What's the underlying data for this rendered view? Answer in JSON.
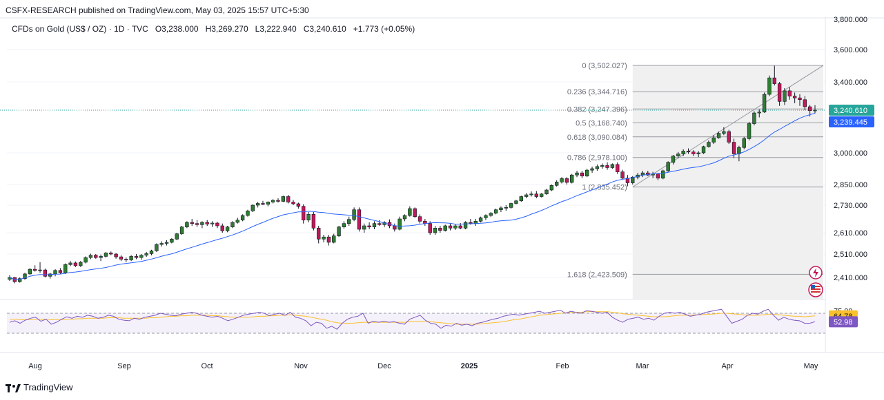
{
  "header": {
    "text": "CSFX-RESEARCH published on TradingView.com, May 03, 2025 15:57 UTC+5:30"
  },
  "legend": {
    "symbol": "CFDs on Gold (US$ / OZ) · 1D · TVC",
    "open": "O3,238.000",
    "high": "H3,269.270",
    "low": "L3,222.940",
    "close": "C3,240.610",
    "change": "+1.773 (+0.05%)"
  },
  "footer": {
    "brand": "TradingView"
  },
  "colors": {
    "up": "#26a69a",
    "up_body": "#2e7d32",
    "down": "#c2185b",
    "ma": "#2962ff",
    "rsi": "#7e57c2",
    "rsi_ma": "#fbc02d",
    "fib_bg": "#f0f0f0"
  },
  "chart_data": [
    {
      "type": "candlestick",
      "price_axis_ticks": [
        "3,600.000",
        "3,400.000",
        "3,000.000",
        "2,850.000",
        "2,730.000",
        "2,610.000",
        "2,510.000",
        "2,410.000"
      ],
      "price_axis_top_partial": "3,800.000",
      "time_axis_ticks": [
        "Aug",
        "Sep",
        "Oct",
        "Nov",
        "Dec",
        "2025",
        "Feb",
        "Mar",
        "Apr",
        "May"
      ],
      "last_price_tag": "3,240.610",
      "ma_tag": "3,239.445",
      "ohlc_series": [
        [
          2402,
          2420,
          2395,
          2410
        ],
        [
          2410,
          2412,
          2385,
          2392
        ],
        [
          2392,
          2410,
          2388,
          2405
        ],
        [
          2405,
          2430,
          2400,
          2425
        ],
        [
          2425,
          2450,
          2420,
          2445
        ],
        [
          2445,
          2462,
          2435,
          2440
        ],
        [
          2440,
          2475,
          2430,
          2442
        ],
        [
          2442,
          2448,
          2410,
          2415
        ],
        [
          2415,
          2430,
          2405,
          2425
        ],
        [
          2425,
          2445,
          2415,
          2440
        ],
        [
          2440,
          2450,
          2425,
          2430
        ],
        [
          2430,
          2470,
          2425,
          2465
        ],
        [
          2465,
          2480,
          2458,
          2472
        ],
        [
          2472,
          2478,
          2455,
          2460
        ],
        [
          2460,
          2480,
          2455,
          2475
        ],
        [
          2475,
          2500,
          2470,
          2495
        ],
        [
          2495,
          2512,
          2488,
          2505
        ],
        [
          2505,
          2510,
          2490,
          2495
        ],
        [
          2495,
          2508,
          2480,
          2500
        ],
        [
          2500,
          2520,
          2495,
          2515
        ],
        [
          2515,
          2522,
          2505,
          2510
        ],
        [
          2510,
          2515,
          2490,
          2498
        ],
        [
          2498,
          2505,
          2480,
          2488
        ],
        [
          2488,
          2495,
          2475,
          2485
        ],
        [
          2485,
          2505,
          2480,
          2500
        ],
        [
          2500,
          2510,
          2488,
          2495
        ],
        [
          2495,
          2510,
          2485,
          2505
        ],
        [
          2505,
          2520,
          2498,
          2512
        ],
        [
          2512,
          2530,
          2505,
          2525
        ],
        [
          2525,
          2560,
          2520,
          2555
        ],
        [
          2555,
          2570,
          2545,
          2560
        ],
        [
          2560,
          2575,
          2550,
          2565
        ],
        [
          2565,
          2585,
          2560,
          2580
        ],
        [
          2580,
          2610,
          2575,
          2605
        ],
        [
          2605,
          2640,
          2600,
          2635
        ],
        [
          2635,
          2660,
          2630,
          2655
        ],
        [
          2655,
          2670,
          2640,
          2650
        ],
        [
          2650,
          2665,
          2635,
          2645
        ],
        [
          2645,
          2660,
          2630,
          2655
        ],
        [
          2655,
          2665,
          2640,
          2648
        ],
        [
          2648,
          2660,
          2635,
          2652
        ],
        [
          2652,
          2658,
          2630,
          2640
        ],
        [
          2640,
          2650,
          2610,
          2618
        ],
        [
          2618,
          2640,
          2612,
          2635
        ],
        [
          2635,
          2660,
          2630,
          2655
        ],
        [
          2655,
          2675,
          2650,
          2665
        ],
        [
          2665,
          2690,
          2660,
          2685
        ],
        [
          2685,
          2710,
          2680,
          2705
        ],
        [
          2705,
          2735,
          2700,
          2730
        ],
        [
          2730,
          2750,
          2720,
          2740
        ],
        [
          2740,
          2755,
          2730,
          2735
        ],
        [
          2735,
          2752,
          2725,
          2748
        ],
        [
          2748,
          2765,
          2740,
          2758
        ],
        [
          2758,
          2770,
          2745,
          2752
        ],
        [
          2752,
          2785,
          2748,
          2780
        ],
        [
          2780,
          2790,
          2740,
          2748
        ],
        [
          2748,
          2760,
          2730,
          2738
        ],
        [
          2738,
          2745,
          2715,
          2725
        ],
        [
          2725,
          2735,
          2650,
          2665
        ],
        [
          2665,
          2700,
          2655,
          2690
        ],
        [
          2690,
          2700,
          2620,
          2630
        ],
        [
          2630,
          2640,
          2560,
          2580
        ],
        [
          2580,
          2600,
          2565,
          2590
        ],
        [
          2590,
          2600,
          2550,
          2565
        ],
        [
          2565,
          2605,
          2560,
          2595
        ],
        [
          2595,
          2640,
          2590,
          2635
        ],
        [
          2635,
          2660,
          2628,
          2650
        ],
        [
          2650,
          2680,
          2640,
          2668
        ],
        [
          2668,
          2720,
          2660,
          2710
        ],
        [
          2710,
          2720,
          2615,
          2625
        ],
        [
          2625,
          2650,
          2610,
          2640
        ],
        [
          2640,
          2655,
          2625,
          2635
        ],
        [
          2635,
          2660,
          2625,
          2650
        ],
        [
          2650,
          2665,
          2640,
          2645
        ],
        [
          2645,
          2660,
          2635,
          2655
        ],
        [
          2655,
          2668,
          2630,
          2640
        ],
        [
          2640,
          2650,
          2615,
          2625
        ],
        [
          2625,
          2680,
          2620,
          2670
        ],
        [
          2670,
          2690,
          2660,
          2685
        ],
        [
          2685,
          2725,
          2680,
          2715
        ],
        [
          2715,
          2720,
          2675,
          2680
        ],
        [
          2680,
          2690,
          2650,
          2660
        ],
        [
          2660,
          2670,
          2640,
          2650
        ],
        [
          2650,
          2660,
          2600,
          2610
        ],
        [
          2610,
          2640,
          2600,
          2630
        ],
        [
          2630,
          2640,
          2610,
          2620
        ],
        [
          2620,
          2645,
          2615,
          2640
        ],
        [
          2640,
          2650,
          2620,
          2630
        ],
        [
          2630,
          2648,
          2622,
          2640
        ],
        [
          2640,
          2652,
          2625,
          2630
        ],
        [
          2630,
          2660,
          2625,
          2655
        ],
        [
          2655,
          2670,
          2645,
          2650
        ],
        [
          2650,
          2670,
          2640,
          2660
        ],
        [
          2660,
          2680,
          2655,
          2675
        ],
        [
          2675,
          2690,
          2665,
          2685
        ],
        [
          2685,
          2700,
          2678,
          2695
        ],
        [
          2695,
          2715,
          2690,
          2710
        ],
        [
          2710,
          2725,
          2700,
          2718
        ],
        [
          2718,
          2730,
          2705,
          2720
        ],
        [
          2720,
          2745,
          2715,
          2740
        ],
        [
          2740,
          2760,
          2735,
          2755
        ],
        [
          2755,
          2785,
          2750,
          2780
        ],
        [
          2780,
          2800,
          2770,
          2790
        ],
        [
          2790,
          2810,
          2780,
          2795
        ],
        [
          2795,
          2812,
          2770,
          2780
        ],
        [
          2780,
          2800,
          2775,
          2795
        ],
        [
          2795,
          2825,
          2790,
          2818
        ],
        [
          2818,
          2850,
          2812,
          2845
        ],
        [
          2845,
          2870,
          2838,
          2862
        ],
        [
          2862,
          2885,
          2855,
          2878
        ],
        [
          2878,
          2885,
          2850,
          2860
        ],
        [
          2860,
          2900,
          2855,
          2895
        ],
        [
          2895,
          2915,
          2885,
          2905
        ],
        [
          2905,
          2915,
          2880,
          2890
        ],
        [
          2890,
          2925,
          2885,
          2918
        ],
        [
          2918,
          2935,
          2905,
          2925
        ],
        [
          2925,
          2945,
          2915,
          2935
        ],
        [
          2935,
          2950,
          2925,
          2940
        ],
        [
          2940,
          2955,
          2920,
          2930
        ],
        [
          2930,
          2950,
          2925,
          2945
        ],
        [
          2945,
          2955,
          2900,
          2910
        ],
        [
          2910,
          2920,
          2875,
          2880
        ],
        [
          2880,
          2895,
          2840,
          2858
        ],
        [
          2858,
          2890,
          2850,
          2885
        ],
        [
          2885,
          2905,
          2875,
          2895
        ],
        [
          2895,
          2915,
          2885,
          2905
        ],
        [
          2905,
          2915,
          2890,
          2895
        ],
        [
          2895,
          2910,
          2880,
          2900
        ],
        [
          2900,
          2905,
          2870,
          2880
        ],
        [
          2880,
          2920,
          2875,
          2915
        ],
        [
          2915,
          2960,
          2910,
          2955
        ],
        [
          2955,
          2990,
          2945,
          2985
        ],
        [
          2985,
          3005,
          2975,
          2995
        ],
        [
          2995,
          3020,
          2985,
          3010
        ],
        [
          3010,
          3025,
          2995,
          3005
        ],
        [
          3005,
          3015,
          2985,
          2995
        ],
        [
          2995,
          3010,
          2980,
          3000
        ],
        [
          3000,
          3040,
          2995,
          3035
        ],
        [
          3035,
          3070,
          3030,
          3060
        ],
        [
          3060,
          3100,
          3050,
          3085
        ],
        [
          3085,
          3120,
          3080,
          3110
        ],
        [
          3110,
          3145,
          3100,
          3120
        ],
        [
          3120,
          3130,
          3050,
          3060
        ],
        [
          3060,
          3080,
          2975,
          2995
        ],
        [
          2995,
          3040,
          2960,
          3030
        ],
        [
          3030,
          3090,
          3020,
          3080
        ],
        [
          3080,
          3175,
          3070,
          3165
        ],
        [
          3165,
          3235,
          3155,
          3225
        ],
        [
          3225,
          3245,
          3200,
          3230
        ],
        [
          3230,
          3340,
          3225,
          3330
        ],
        [
          3330,
          3440,
          3320,
          3425
        ],
        [
          3425,
          3500,
          3380,
          3390
        ],
        [
          3390,
          3400,
          3265,
          3290
        ],
        [
          3290,
          3365,
          3270,
          3350
        ],
        [
          3350,
          3370,
          3300,
          3320
        ],
        [
          3320,
          3340,
          3280,
          3310
        ],
        [
          3310,
          3330,
          3265,
          3300
        ],
        [
          3300,
          3320,
          3240,
          3260
        ],
        [
          3260,
          3270,
          3205,
          3238
        ],
        [
          3238,
          3269,
          3223,
          3240.61
        ]
      ],
      "fibonacci": {
        "levels": [
          {
            "label": "0 (3,502.027)",
            "value": 3502.027
          },
          {
            "label": "0.236 (3,344.716)",
            "value": 3344.716
          },
          {
            "label": "0.382 (3,247.396)",
            "value": 3247.396
          },
          {
            "label": "0.5 (3,168.740)",
            "value": 3168.74
          },
          {
            "label": "0.618 (3,090.084)",
            "value": 3090.084
          },
          {
            "label": "0.786 (2,978.100)",
            "value": 2978.1
          },
          {
            "label": "1 (2,835.452)",
            "value": 2835.452
          },
          {
            "label": "1.618 (2,423.509)",
            "value": 2423.509
          }
        ]
      }
    },
    {
      "type": "line",
      "name": "RSI",
      "tick_top": "75.00",
      "rsi_ma_tag": "64.78",
      "rsi_tag": "52.98",
      "rsi": [
        52,
        55,
        50,
        56,
        60,
        62,
        54,
        58,
        48,
        52,
        58,
        63,
        60,
        64,
        62,
        66,
        64,
        60,
        62,
        66,
        64,
        58,
        56,
        55,
        60,
        58,
        62,
        64,
        66,
        70,
        68,
        66,
        65,
        68,
        70,
        72,
        70,
        66,
        64,
        62,
        64,
        60,
        55,
        58,
        62,
        66,
        68,
        70,
        72,
        70,
        65,
        68,
        70,
        66,
        72,
        62,
        60,
        55,
        45,
        52,
        50,
        40,
        44,
        38,
        50,
        58,
        62,
        64,
        70,
        50,
        54,
        52,
        54,
        52,
        53,
        50,
        48,
        58,
        62,
        66,
        56,
        50,
        48,
        40,
        46,
        44,
        50,
        46,
        48,
        45,
        50,
        52,
        55,
        58,
        60,
        64,
        66,
        68,
        66,
        68,
        70,
        72,
        74,
        70,
        72,
        74,
        76,
        70,
        74,
        72,
        70,
        75,
        74,
        72,
        70,
        72,
        62,
        56,
        52,
        58,
        60,
        62,
        58,
        60,
        56,
        64,
        70,
        72,
        70,
        72,
        68,
        64,
        66,
        68,
        72,
        74,
        76,
        78,
        64,
        50,
        54,
        58,
        66,
        70,
        68,
        74,
        78,
        66,
        56,
        62,
        58,
        56,
        55,
        50,
        50,
        53
      ],
      "rsi_ma": [
        58,
        58,
        57,
        57,
        57,
        58,
        58,
        58,
        57,
        57,
        57,
        58,
        58,
        59,
        59,
        60,
        60,
        60,
        60,
        61,
        61,
        61,
        60,
        60,
        60,
        60,
        60,
        61,
        61,
        62,
        63,
        64,
        64,
        65,
        65,
        66,
        66,
        66,
        66,
        65,
        65,
        64,
        63,
        62,
        62,
        62,
        62,
        63,
        64,
        64,
        65,
        65,
        66,
        66,
        67,
        66,
        65,
        64,
        62,
        60,
        58,
        56,
        53,
        51,
        50,
        50,
        50,
        51,
        52,
        52,
        52,
        52,
        52,
        52,
        52,
        52,
        52,
        53,
        53,
        54,
        54,
        53,
        52,
        51,
        50,
        49,
        48,
        48,
        48,
        48,
        48,
        49,
        50,
        51,
        52,
        53,
        55,
        57,
        58,
        60,
        62,
        64,
        66,
        67,
        68,
        69,
        70,
        71,
        72,
        72,
        72,
        73,
        73,
        73,
        73,
        73,
        72,
        71,
        69,
        68,
        67,
        66,
        65,
        64,
        63,
        63,
        63,
        64,
        65,
        66,
        66,
        66,
        67,
        67,
        68,
        68,
        69,
        70,
        70,
        69,
        68,
        67,
        66,
        66,
        66,
        67,
        68,
        68,
        67,
        66,
        65,
        64,
        64,
        63,
        64,
        64.78
      ]
    }
  ]
}
